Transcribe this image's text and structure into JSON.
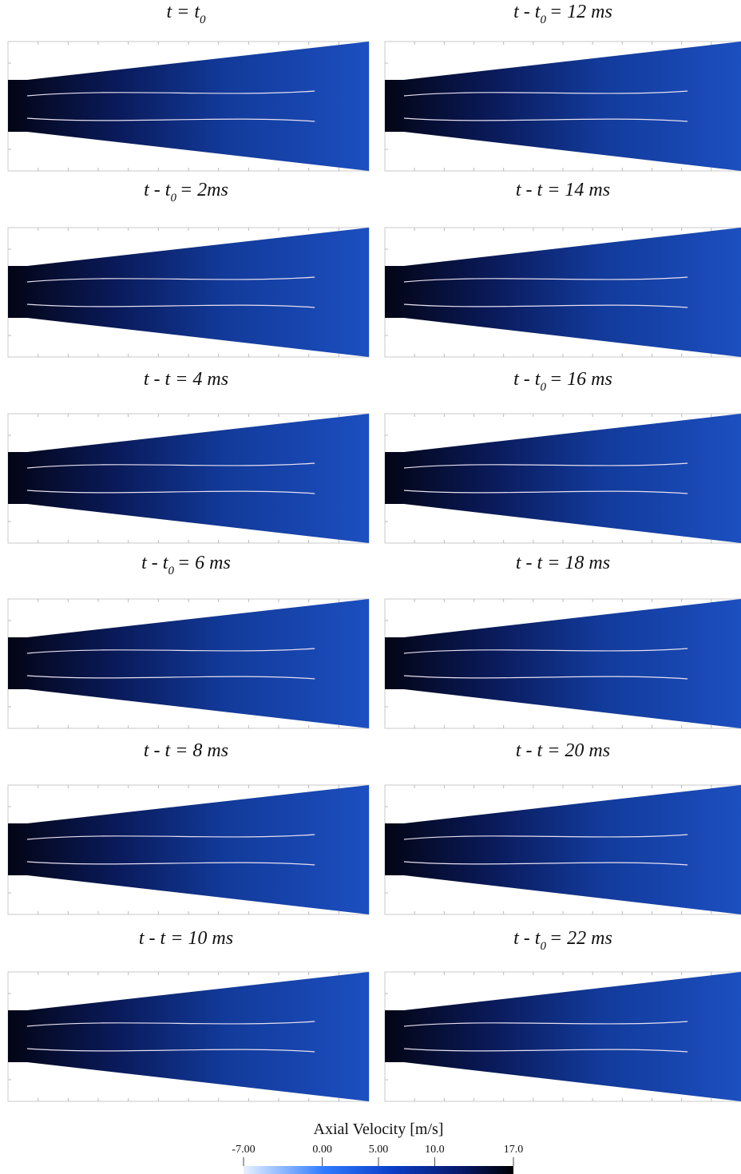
{
  "panels": [
    {
      "title": {
        "pre": "t = t",
        "sub": "0"
      }
    },
    {
      "title": {
        "pre": "t - t",
        "sub": "0",
        "post": "= 12 ms"
      }
    },
    {
      "title": {
        "pre": "t - t",
        "sub": "0",
        "post": "= 2ms"
      }
    },
    {
      "title": {
        "pre": "t - t  = 14 ms"
      }
    },
    {
      "title": {
        "pre": "t - t  = 4 ms"
      }
    },
    {
      "title": {
        "pre": "t - t",
        "sub": "0",
        "post": "= 16 ms"
      }
    },
    {
      "title": {
        "pre": "t - t",
        "sub": "0",
        "post": "= 6 ms"
      }
    },
    {
      "title": {
        "pre": "t - t  = 18 ms"
      }
    },
    {
      "title": {
        "pre": "t - t  = 8 ms"
      }
    },
    {
      "title": {
        "pre": "t - t  = 20 ms"
      }
    },
    {
      "title": {
        "pre": "t - t  = 10 ms"
      }
    },
    {
      "title": {
        "pre": "t - t",
        "sub": "0",
        "post": "= 22 ms"
      }
    }
  ],
  "colorbar": {
    "title": "Axial Velocity [m/s]",
    "lim": [
      -7,
      17
    ],
    "ticks": [
      {
        "value": -7,
        "label": "-7.00"
      },
      {
        "value": 0,
        "label": "0.00"
      },
      {
        "value": 5,
        "label": "5.00"
      },
      {
        "value": 10,
        "label": "10.0"
      },
      {
        "value": 17,
        "label": "17.0"
      }
    ]
  }
}
